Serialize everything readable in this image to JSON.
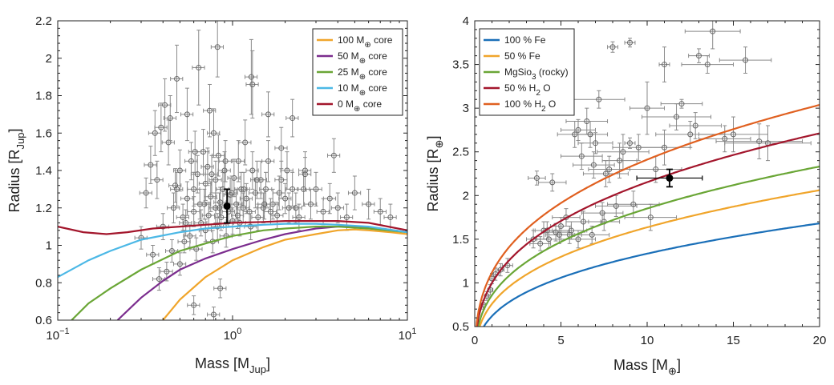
{
  "chart_data": [
    {
      "type": "line",
      "xscale": "log",
      "xlim": [
        0.1,
        10
      ],
      "ylim": [
        0.6,
        2.2
      ],
      "xlabel": "Mass [M",
      "xlabel_sub": "Jup",
      "xlabel_end": "]",
      "ylabel": "Radius [R",
      "ylabel_sub": "Jup",
      "ylabel_end": "]",
      "xticks": [
        0.1,
        1,
        10
      ],
      "xtick_labels": [
        {
          "base": "10",
          "exp": "−1"
        },
        {
          "base": "10",
          "exp": "0"
        },
        {
          "base": "10",
          "exp": "1"
        }
      ],
      "yticks": [
        0.6,
        0.8,
        1,
        1.2,
        1.4,
        1.6,
        1.8,
        2,
        2.2
      ],
      "ytick_labels": [
        "0.6",
        "0.8",
        "1",
        "1.2",
        "1.4",
        "1.6",
        "1.8",
        "2",
        "2.2"
      ],
      "legend_position": "top-right",
      "series": [
        {
          "name": "100 M",
          "sub": "⊕",
          "suffix": " core",
          "color": "#f0a52b",
          "x": [
            0.4,
            0.5,
            0.7,
            1.0,
            1.5,
            2.0,
            3.0,
            4.0,
            5.0,
            6.0,
            8.0,
            10.0
          ],
          "y": [
            0.6,
            0.71,
            0.83,
            0.92,
            0.99,
            1.03,
            1.06,
            1.08,
            1.085,
            1.08,
            1.07,
            1.06
          ]
        },
        {
          "name": "50 M",
          "sub": "⊕",
          "suffix": " core",
          "color": "#7b2d8e",
          "x": [
            0.22,
            0.3,
            0.4,
            0.5,
            0.7,
            1.0,
            1.5,
            2.0,
            3.0,
            4.0,
            5.0,
            7.0,
            10.0
          ],
          "y": [
            0.6,
            0.72,
            0.81,
            0.87,
            0.93,
            0.98,
            1.03,
            1.06,
            1.09,
            1.1,
            1.1,
            1.09,
            1.07
          ]
        },
        {
          "name": "25 M",
          "sub": "⊕",
          "suffix": " core",
          "color": "#6aa636",
          "x": [
            0.12,
            0.15,
            0.2,
            0.3,
            0.5,
            0.7,
            1.0,
            1.5,
            2.0,
            3.0,
            4.0,
            6.0,
            10.0
          ],
          "y": [
            0.6,
            0.69,
            0.77,
            0.87,
            0.97,
            1.01,
            1.05,
            1.08,
            1.09,
            1.1,
            1.1,
            1.09,
            1.07
          ]
        },
        {
          "name": "10 M",
          "sub": "⊕",
          "suffix": " core",
          "color": "#4cb8e6",
          "x": [
            0.1,
            0.15,
            0.2,
            0.3,
            0.5,
            0.7,
            1.0,
            1.5,
            2.0,
            3.0,
            4.0,
            6.0,
            10.0
          ],
          "y": [
            0.83,
            0.92,
            0.97,
            1.03,
            1.07,
            1.09,
            1.1,
            1.11,
            1.115,
            1.115,
            1.11,
            1.1,
            1.07
          ]
        },
        {
          "name": "0 M",
          "sub": "⊕",
          "suffix": " core",
          "color": "#a3162c",
          "x": [
            0.1,
            0.14,
            0.19,
            0.25,
            0.35,
            0.5,
            0.7,
            1.0,
            1.5,
            2.0,
            3.0,
            4.0,
            6.0,
            10.0
          ],
          "y": [
            1.1,
            1.07,
            1.06,
            1.07,
            1.09,
            1.1,
            1.11,
            1.12,
            1.125,
            1.13,
            1.13,
            1.13,
            1.12,
            1.08
          ]
        }
      ],
      "highlight_point": {
        "x": 0.93,
        "y": 1.21,
        "yerr": 0.09,
        "xerr": 0.03
      },
      "scatter": {
        "x": [
          0.3,
          0.32,
          0.35,
          0.37,
          0.38,
          0.4,
          0.42,
          0.43,
          0.45,
          0.46,
          0.48,
          0.5,
          0.5,
          0.52,
          0.53,
          0.55,
          0.55,
          0.57,
          0.58,
          0.6,
          0.6,
          0.62,
          0.63,
          0.65,
          0.66,
          0.68,
          0.7,
          0.7,
          0.72,
          0.73,
          0.75,
          0.77,
          0.78,
          0.8,
          0.8,
          0.82,
          0.83,
          0.85,
          0.86,
          0.88,
          0.9,
          0.92,
          0.95,
          0.97,
          1.0,
          1.02,
          1.05,
          1.08,
          1.1,
          1.12,
          1.15,
          1.18,
          1.2,
          1.25,
          1.3,
          1.35,
          1.4,
          1.45,
          1.5,
          1.55,
          1.6,
          1.7,
          1.8,
          1.9,
          2.0,
          2.1,
          2.2,
          2.4,
          2.6,
          2.8,
          3.0,
          3.3,
          3.6,
          4.0,
          4.5,
          5.0,
          6.0,
          7.0,
          8.0,
          0.36,
          0.41,
          0.47,
          0.54,
          0.61,
          0.69,
          0.76,
          0.84,
          0.91,
          0.99,
          1.07,
          1.16,
          1.27,
          1.38,
          1.52,
          1.65,
          1.85,
          2.05,
          2.3,
          2.55,
          0.82,
          0.78,
          0.85,
          1.28,
          1.3,
          1.6,
          2.2,
          3.8,
          0.44,
          0.48,
          0.34,
          0.39,
          0.64,
          0.74,
          1.9,
          2.6,
          0.6
        ],
        "y": [
          1.04,
          1.28,
          0.95,
          1.35,
          0.82,
          1.1,
          0.86,
          1.55,
          0.97,
          1.2,
          1.3,
          0.9,
          1.4,
          1.15,
          1.02,
          1.25,
          1.7,
          1.05,
          1.45,
          1.18,
          1.3,
          0.98,
          1.38,
          1.22,
          1.12,
          1.5,
          1.08,
          1.33,
          1.42,
          1.16,
          1.26,
          1.02,
          1.6,
          1.2,
          1.35,
          1.1,
          1.48,
          1.23,
          1.15,
          1.3,
          1.4,
          1.05,
          1.18,
          1.27,
          1.13,
          1.36,
          1.22,
          1.45,
          1.12,
          1.3,
          1.2,
          1.55,
          1.25,
          1.18,
          1.4,
          1.28,
          1.15,
          1.35,
          1.2,
          1.3,
          1.45,
          1.22,
          1.16,
          1.35,
          1.25,
          1.2,
          1.3,
          1.15,
          1.4,
          1.22,
          1.3,
          1.18,
          1.25,
          1.2,
          1.15,
          1.28,
          1.22,
          1.18,
          1.15,
          1.6,
          1.75,
          1.32,
          1.12,
          1.5,
          1.22,
          1.38,
          1.2,
          1.45,
          1.28,
          1.16,
          1.3,
          1.1,
          1.35,
          1.22,
          1.18,
          1.28,
          1.4,
          1.2,
          1.3,
          2.06,
          0.63,
          0.77,
          1.9,
          1.86,
          1.7,
          1.68,
          1.48,
          1.68,
          1.89,
          1.43,
          1.63,
          1.95,
          1.72,
          1.52,
          1.38,
          0.68
        ],
        "xerr_frac": 0.08,
        "yerr": [
          0.06,
          0.08,
          0.05,
          0.1,
          0.06,
          0.07,
          0.05,
          0.12,
          0.06,
          0.08,
          0.09,
          0.06,
          0.11,
          0.07,
          0.06,
          0.09,
          0.14,
          0.06,
          0.1,
          0.08,
          0.09,
          0.06,
          0.1,
          0.08,
          0.07,
          0.12,
          0.06,
          0.09,
          0.1,
          0.07,
          0.08,
          0.06,
          0.13,
          0.08,
          0.1,
          0.07,
          0.11,
          0.08,
          0.07,
          0.09,
          0.1,
          0.06,
          0.08,
          0.09,
          0.07,
          0.1,
          0.08,
          0.11,
          0.07,
          0.09,
          0.08,
          0.12,
          0.08,
          0.07,
          0.1,
          0.08,
          0.07,
          0.1,
          0.08,
          0.09,
          0.11,
          0.08,
          0.07,
          0.1,
          0.08,
          0.08,
          0.09,
          0.07,
          0.1,
          0.08,
          0.09,
          0.07,
          0.08,
          0.08,
          0.07,
          0.09,
          0.08,
          0.07,
          0.07,
          0.12,
          0.14,
          0.09,
          0.07,
          0.11,
          0.08,
          0.1,
          0.08,
          0.11,
          0.09,
          0.07,
          0.09,
          0.07,
          0.1,
          0.08,
          0.07,
          0.09,
          0.1,
          0.08,
          0.09,
          0.16,
          0.04,
          0.05,
          0.2,
          0.18,
          0.12,
          0.1,
          0.09,
          0.12,
          0.18,
          0.1,
          0.13,
          0.2,
          0.14,
          0.11,
          0.09,
          0.05
        ]
      }
    },
    {
      "type": "line",
      "xscale": "linear",
      "xlim": [
        0,
        20
      ],
      "ylim": [
        0.5,
        4
      ],
      "xlabel": "Mass [M",
      "xlabel_sub": "⊕",
      "xlabel_end": "]",
      "ylabel": "Radius [R",
      "ylabel_sub": "⊕",
      "ylabel_end": "]",
      "xticks": [
        0,
        5,
        10,
        15,
        20
      ],
      "xtick_labels": [
        "0",
        "5",
        "10",
        "15",
        "20"
      ],
      "yticks": [
        0.5,
        1,
        1.5,
        2,
        2.5,
        3,
        3.5,
        4
      ],
      "ytick_labels": [
        "0.5",
        "1",
        "1.5",
        "2",
        "2.5",
        "3",
        "3.5",
        "4"
      ],
      "legend_position": "top-left",
      "series": [
        {
          "name": "100 % Fe",
          "color": "#1a6fb8",
          "coef": 0.62,
          "expo": 0.333
        },
        {
          "name": "50 % Fe",
          "color": "#f0a52b",
          "coef": 0.76,
          "expo": 0.333
        },
        {
          "name": "MgSio",
          "sub": "3",
          "suffix": " (rocky)",
          "color": "#6aa636",
          "coef": 0.86,
          "expo": 0.333
        },
        {
          "name": "50 % H",
          "sub": "2",
          "suffix": " O",
          "color": "#a3162c",
          "coef": 1.0,
          "expo": 0.333
        },
        {
          "name": "100 % H",
          "sub": "2",
          "suffix": " O",
          "color": "#e06020",
          "coef": 1.12,
          "expo": 0.333
        }
      ],
      "highlight_point": {
        "x": 11.3,
        "y": 2.2,
        "yerr": 0.1,
        "xerr": 1.9
      },
      "scatter": {
        "x": [
          0.5,
          0.7,
          0.9,
          1.0,
          1.2,
          1.5,
          1.9,
          3.4,
          3.6,
          4.0,
          4.5,
          5.0,
          5.5,
          6.0,
          6.5,
          7.0,
          7.5,
          8.0,
          9.0,
          10.0,
          11.0,
          12.0,
          13.0,
          13.8,
          14.5,
          15.0,
          15.7,
          16.5,
          17.0,
          5.8,
          6.2,
          6.7,
          7.2,
          7.8,
          8.4,
          9.0,
          9.5,
          10.2,
          11.0,
          12.5,
          13.5,
          4.2,
          4.9,
          5.3,
          6.0,
          6.8,
          7.4,
          8.2,
          9.2,
          10.5,
          11.7,
          12.8,
          3.8,
          4.3,
          4.7,
          5.6,
          6.3,
          6.9,
          7.6,
          8.6
        ],
        "y": [
          0.75,
          0.85,
          0.92,
          1.05,
          1.1,
          1.15,
          1.2,
          1.5,
          2.2,
          1.6,
          2.15,
          1.65,
          1.55,
          2.75,
          2.85,
          2.6,
          1.7,
          3.7,
          2.6,
          3.0,
          3.5,
          3.05,
          3.6,
          3.88,
          2.65,
          2.7,
          3.55,
          2.62,
          2.6,
          2.7,
          2.45,
          2.7,
          3.1,
          2.3,
          2.4,
          3.75,
          2.55,
          1.75,
          2.55,
          2.7,
          3.5,
          1.6,
          1.55,
          1.75,
          1.5,
          1.55,
          1.8,
          1.88,
          1.9,
          2.3,
          2.9,
          2.8,
          1.45,
          1.5,
          1.58,
          1.6,
          1.7,
          2.35,
          2.25,
          2.5
        ],
        "xerr": [
          0.1,
          0.1,
          0.15,
          0.15,
          0.2,
          0.2,
          0.3,
          0.4,
          0.5,
          0.5,
          0.8,
          0.6,
          0.7,
          1.0,
          1.2,
          1.0,
          0.9,
          0.3,
          0.3,
          1.0,
          0.3,
          1.2,
          0.6,
          1.6,
          1.5,
          2.0,
          1.5,
          2.5,
          2.5,
          1.0,
          1.2,
          1.0,
          1.5,
          1.2,
          1.0,
          0.3,
          1.5,
          1.5,
          1.5,
          2.0,
          1.5,
          0.8,
          0.8,
          0.8,
          1.0,
          1.0,
          1.2,
          1.2,
          1.5,
          1.5,
          2.0,
          1.5,
          0.6,
          0.7,
          0.7,
          0.9,
          1.0,
          1.2,
          1.3,
          1.5
        ],
        "yerr": [
          0.05,
          0.05,
          0.06,
          0.06,
          0.07,
          0.07,
          0.08,
          0.1,
          0.08,
          0.1,
          0.1,
          0.1,
          0.1,
          0.12,
          0.15,
          0.12,
          0.1,
          0.06,
          0.06,
          0.3,
          0.2,
          0.05,
          0.08,
          0.2,
          0.15,
          0.2,
          0.15,
          0.2,
          0.2,
          0.15,
          0.15,
          0.15,
          0.1,
          0.15,
          0.2,
          0.05,
          0.15,
          0.15,
          0.2,
          0.15,
          0.1,
          0.1,
          0.1,
          0.1,
          0.1,
          0.1,
          0.12,
          0.12,
          0.15,
          0.15,
          0.15,
          0.15,
          0.08,
          0.1,
          0.1,
          0.1,
          0.12,
          0.15,
          0.15,
          0.2
        ]
      }
    }
  ]
}
